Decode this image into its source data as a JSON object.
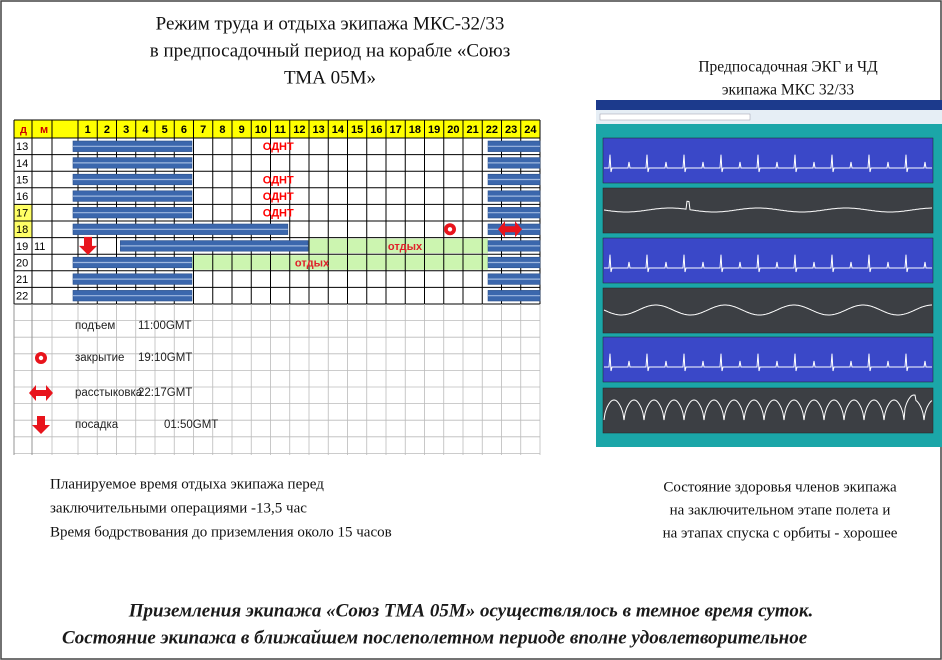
{
  "title": [
    "Режим труда и отдыха экипажа МКС-32/33",
    "в предпосадочный период   на корабле «Союз",
    "ТМА 05М»"
  ],
  "schedule": {
    "header": [
      "д",
      "м",
      "1",
      "2",
      "3",
      "4",
      "5",
      "6",
      "7",
      "8",
      "9",
      "10",
      "11",
      "12",
      "13",
      "14",
      "15",
      "16",
      "17",
      "18",
      "19",
      "20",
      "21",
      "22",
      "23",
      "24"
    ],
    "rows": [
      {
        "day": "13",
        "note": "ОДНТ"
      },
      {
        "day": "14"
      },
      {
        "day": "15",
        "note": "ОДНТ"
      },
      {
        "day": "16",
        "note": "ОДНТ"
      },
      {
        "day": "17",
        "note": "ОДНТ"
      },
      {
        "day": "18"
      },
      {
        "day": "19",
        "month": "11",
        "note": "отдых"
      },
      {
        "day": "20",
        "note": "отдых"
      },
      {
        "day": "21"
      },
      {
        "day": "22"
      }
    ],
    "legend": [
      {
        "label": "подъем",
        "time": "11:00GMT"
      },
      {
        "label": "закрытие",
        "time": "19:10GMT"
      },
      {
        "label": "расстыковка",
        "time": "22:17GMT"
      },
      {
        "label": "посадка",
        "time": "01:50GMT"
      }
    ]
  },
  "ecg": {
    "title": [
      "Предпосадочная  ЭКГ и ЧД",
      "экипажа МКС 32/33"
    ]
  },
  "notes_left": [
    "Планируемое время отдыха экипажа перед",
    "заключительными операциями -13,5 час",
    "Время бодрствования до приземления  около 15 часов"
  ],
  "notes_right": [
    "Состояние здоровья  членов экипажа",
    "на заключительном этапе полета и",
    "на этапах спуска с орбиты - хорошее"
  ],
  "conclusion": [
    "Приземления экипажа «Союз ТМА 05М» осуществлялось в темное время суток.",
    "Состояние экипажа в ближайшем послеполетном периоде  вполне удовлетворительное"
  ]
}
